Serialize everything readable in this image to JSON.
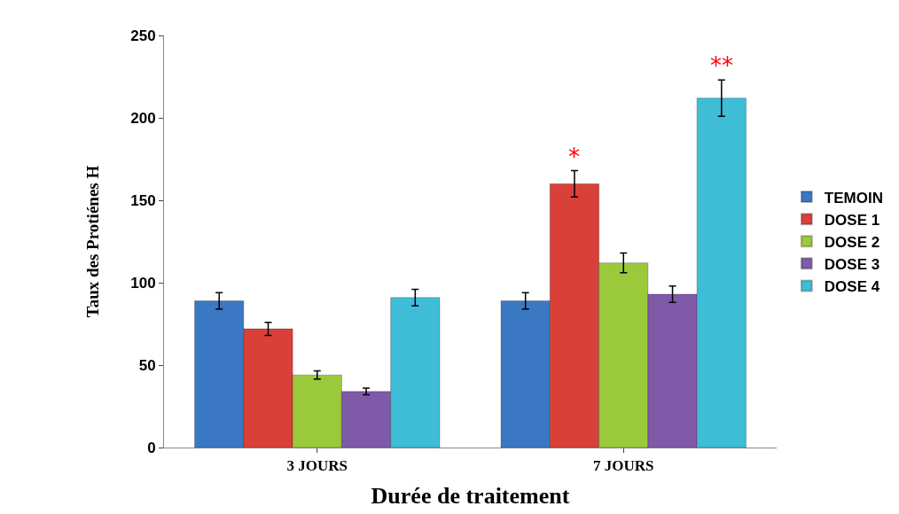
{
  "chart_data": {
    "type": "bar",
    "categories": [
      "3 JOURS",
      "7 JOURS"
    ],
    "series": [
      {
        "name": "TEMOIN",
        "color": "#3a78c3",
        "values": [
          89,
          89
        ],
        "errors": [
          5,
          5
        ]
      },
      {
        "name": "DOSE 1",
        "color": "#d9403a",
        "values": [
          72,
          160
        ],
        "errors": [
          4,
          8
        ]
      },
      {
        "name": "DOSE 2",
        "color": "#9bc93c",
        "values": [
          44,
          112
        ],
        "errors": [
          2.5,
          6
        ]
      },
      {
        "name": "DOSE 3",
        "color": "#7f5aa8",
        "values": [
          34,
          93
        ],
        "errors": [
          2,
          5
        ]
      },
      {
        "name": "DOSE 4",
        "color": "#3fbcd6",
        "values": [
          91,
          212
        ],
        "errors": [
          5,
          11
        ]
      }
    ],
    "xlabel": "Durée de traitement",
    "ylabel": "Taux des Protiénes H",
    "ylim": [
      0,
      250
    ],
    "yticks": [
      0,
      50,
      100,
      150,
      200,
      250
    ],
    "grid": false,
    "legend": "right",
    "annotations": [
      "*",
      "**"
    ]
  }
}
